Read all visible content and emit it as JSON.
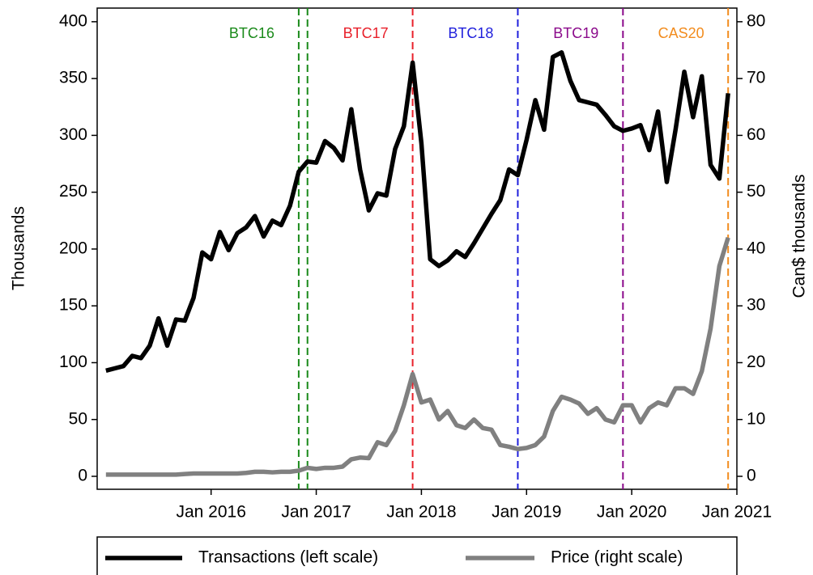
{
  "chart_data": {
    "type": "line",
    "y_label": "Thousands",
    "y2_label": "Can$ thousands",
    "x": [
      "2015-01",
      "2015-02",
      "2015-03",
      "2015-04",
      "2015-05",
      "2015-06",
      "2015-07",
      "2015-08",
      "2015-09",
      "2015-10",
      "2015-11",
      "2015-12",
      "2016-01",
      "2016-02",
      "2016-03",
      "2016-04",
      "2016-05",
      "2016-06",
      "2016-07",
      "2016-08",
      "2016-09",
      "2016-10",
      "2016-11",
      "2016-12",
      "2017-01",
      "2017-02",
      "2017-03",
      "2017-04",
      "2017-05",
      "2017-06",
      "2017-07",
      "2017-08",
      "2017-09",
      "2017-10",
      "2017-11",
      "2017-12",
      "2018-01",
      "2018-02",
      "2018-03",
      "2018-04",
      "2018-05",
      "2018-06",
      "2018-07",
      "2018-08",
      "2018-09",
      "2018-10",
      "2018-11",
      "2018-12",
      "2019-01",
      "2019-02",
      "2019-03",
      "2019-04",
      "2019-05",
      "2019-06",
      "2019-07",
      "2019-08",
      "2019-09",
      "2019-10",
      "2019-11",
      "2019-12",
      "2020-01",
      "2020-02",
      "2020-03",
      "2020-04",
      "2020-05",
      "2020-06",
      "2020-07",
      "2020-08",
      "2020-09",
      "2020-10",
      "2020-11",
      "2020-12"
    ],
    "series": [
      {
        "name": "Transactions (left scale)",
        "color": "#000000",
        "values": [
          93,
          95,
          97,
          106,
          104,
          115,
          139,
          115,
          138,
          137,
          157,
          197,
          191,
          215,
          199,
          214,
          219,
          229,
          211,
          225,
          221,
          238,
          268,
          277,
          276,
          295,
          289,
          278,
          323,
          270,
          234,
          249,
          247,
          288,
          308,
          364,
          293,
          191,
          185,
          190,
          198,
          193,
          205,
          218,
          231,
          243,
          270,
          265,
          296,
          331,
          305,
          369,
          373,
          348,
          331,
          329,
          327,
          318,
          308,
          304,
          306,
          309,
          287,
          321,
          259,
          305,
          356,
          316,
          352,
          274,
          262,
          337
        ]
      },
      {
        "name": "Price (right scale)",
        "color": "#808080",
        "axis": "y2",
        "values": [
          0.3,
          0.3,
          0.3,
          0.3,
          0.3,
          0.3,
          0.3,
          0.3,
          0.3,
          0.4,
          0.5,
          0.5,
          0.5,
          0.5,
          0.5,
          0.5,
          0.6,
          0.8,
          0.8,
          0.7,
          0.8,
          0.8,
          1.0,
          1.5,
          1.3,
          1.5,
          1.5,
          1.7,
          3.0,
          3.3,
          3.2,
          6.0,
          5.5,
          8.0,
          12.5,
          18.0,
          13.0,
          13.5,
          10.0,
          11.5,
          9.0,
          8.5,
          10.0,
          8.5,
          8.2,
          5.5,
          5.2,
          4.8,
          5.0,
          5.5,
          7.0,
          11.5,
          14.0,
          13.5,
          12.8,
          11.0,
          12.0,
          10.0,
          9.5,
          12.5,
          12.5,
          9.5,
          12.0,
          13.0,
          12.5,
          15.5,
          15.5,
          14.5,
          18.5,
          26.0,
          37.0,
          42.0
        ]
      }
    ],
    "events": [
      {
        "name": "BTC16",
        "color": "#1a8a1a",
        "dates": [
          "2016-11",
          "2016-12"
        ]
      },
      {
        "name": "BTC17",
        "color": "#e8202a",
        "dates": [
          "2017-12"
        ]
      },
      {
        "name": "BTC18",
        "color": "#1f1fdc",
        "dates": [
          "2018-12"
        ]
      },
      {
        "name": "BTC19",
        "color": "#8b0a8b",
        "dates": [
          "2019-12"
        ]
      },
      {
        "name": "CAS20",
        "color": "#f28c1e",
        "dates": [
          "2020-12"
        ]
      }
    ],
    "xlim": [
      "2014-12",
      "2021-01"
    ],
    "xticks": [
      {
        "value": "2016-01",
        "label": "Jan 2016"
      },
      {
        "value": "2017-01",
        "label": "Jan 2017"
      },
      {
        "value": "2018-01",
        "label": "Jan 2018"
      },
      {
        "value": "2019-01",
        "label": "Jan 2019"
      },
      {
        "value": "2020-01",
        "label": "Jan 2020"
      },
      {
        "value": "2021-01",
        "label": "Jan 2021"
      }
    ],
    "ylim": [
      -11.4,
      412
    ],
    "yticks": [
      0,
      50,
      100,
      150,
      200,
      250,
      300,
      350,
      400
    ],
    "y2lim": [
      -2.28,
      82.4
    ],
    "y2ticks": [
      0,
      10,
      20,
      30,
      40,
      50,
      60,
      70,
      80
    ],
    "legend": "bottom"
  }
}
